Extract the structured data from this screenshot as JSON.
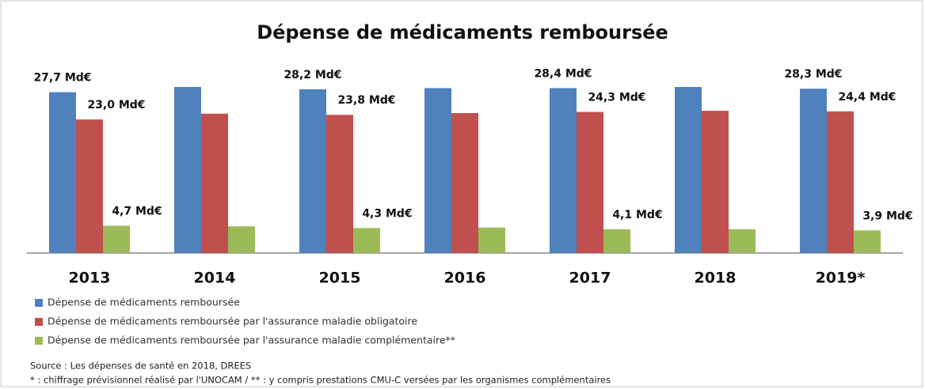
{
  "chart_data": {
    "type": "bar",
    "title": "Dépense de médicaments remboursée",
    "categories": [
      "2013",
      "2014",
      "2015",
      "2016",
      "2017",
      "2018",
      "2019*"
    ],
    "series": [
      {
        "name": "Dépense de médicaments remboursée",
        "color": "#4f81bd",
        "values": [
          27.7,
          28.6,
          28.2,
          28.4,
          28.4,
          28.6,
          28.3
        ],
        "value_labels": [
          "27,7 Md€",
          null,
          "28,2 Md€",
          null,
          "28,4 Md€",
          null,
          "28,3 Md€"
        ]
      },
      {
        "name": "Dépense de médicaments remboursée par l'assurance maladie obligatoire",
        "color": "#c0504d",
        "values": [
          23.0,
          24.0,
          23.8,
          24.1,
          24.3,
          24.5,
          24.4
        ],
        "value_labels": [
          "23,0 Md€",
          null,
          "23,8 Md€",
          null,
          "24,3 Md€",
          null,
          "24,4 Md€"
        ]
      },
      {
        "name": "Dépense de médicaments remboursée par l'assurance maladie complémentaire**",
        "color": "#9bbb59",
        "values": [
          4.7,
          4.6,
          4.3,
          4.4,
          4.1,
          4.1,
          3.9
        ],
        "value_labels": [
          "4,7 Md€",
          null,
          "4,3 Md€",
          null,
          "4,1 Md€",
          null,
          "3,9 Md€"
        ]
      }
    ],
    "source": "Source :  Les dépenses de santé en 2018, DREES",
    "note": "* : chiffrage prévisionnel réalisé par l'UNOCAM / ** : y compris prestations CMU-C versées par les organismes complémentaires"
  }
}
